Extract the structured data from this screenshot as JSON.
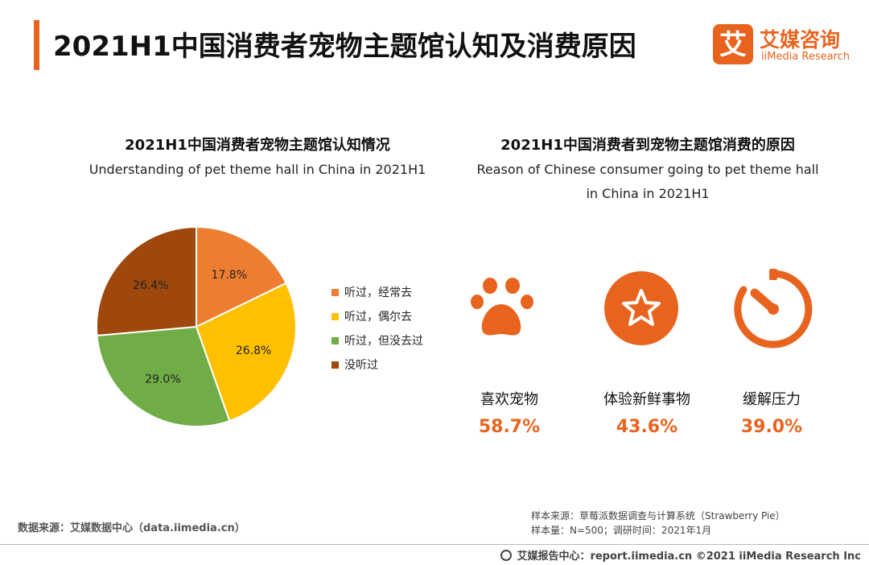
{
  "header": {
    "title": "2021H1中国消费者宠物主题馆认知及消费原因",
    "logo_cn": "艾媒咨询",
    "logo_en": "iiMedia Research",
    "logo_glyph": "艾"
  },
  "left_panel": {
    "title_cn": "2021H1中国消费者宠物主题馆认知情况",
    "title_en": "Understanding of pet theme hall in China in 2021H1"
  },
  "right_panel": {
    "title_cn": "2021H1中国消费者到宠物主题馆消费的原因",
    "title_en": "Reason of Chinese consumer going to pet theme hall in China in 2021H1"
  },
  "chart_data": [
    {
      "type": "pie",
      "categories": [
        "听过，经常去",
        "听过，偶尔去",
        "听过，但没去过",
        "没听过"
      ],
      "values": [
        17.8,
        26.8,
        29.0,
        26.4
      ],
      "labels": [
        "17.8%",
        "26.8%",
        "29.0%",
        "26.4%"
      ],
      "colors": [
        "#ED7D31",
        "#FFC000",
        "#70AD47",
        "#9E480E"
      ],
      "legend_position": "right"
    },
    {
      "type": "bar",
      "categories": [
        "喜欢宠物",
        "体验新鲜事物",
        "缓解压力"
      ],
      "values": [
        58.7,
        43.6,
        39.0
      ],
      "labels": [
        "58.7%",
        "43.6%",
        "39.0%"
      ],
      "icons": [
        "paw-icon",
        "star-icon",
        "stopwatch-icon"
      ],
      "colors": [
        "#E8641E"
      ]
    }
  ],
  "sources": {
    "left": "数据来源：艾媒数据中心（data.iimedia.cn）",
    "right_line1": "样本来源：草莓派数据调查与计算系统（Strawberry Pie）",
    "right_line2": "样本量：N=500；调研时间：2021年1月"
  },
  "footer": {
    "text": "艾媒报告中心：report.iimedia.cn  ©2021  iiMedia Research  Inc"
  }
}
